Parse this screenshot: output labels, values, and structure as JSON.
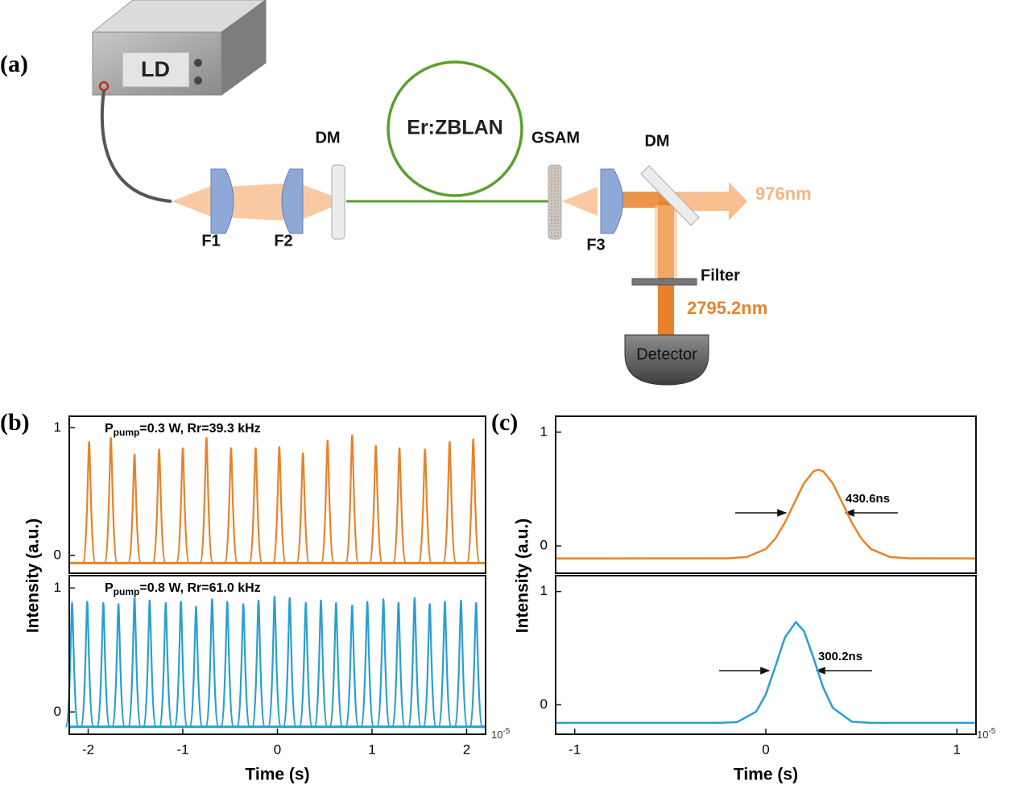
{
  "diagram": {
    "label": "(a)",
    "source": "LD",
    "mirror1": "DM",
    "fiber": "Er:ZBLAN",
    "absorber": "GSAM",
    "mirror2": "DM",
    "pump_wavelength": "976nm",
    "lens1": "F1",
    "lens2": "F2",
    "lens3": "F3",
    "filter": "Filter",
    "laser_wavelength": "2795.2nm",
    "detector": "Detector"
  },
  "chart_data": [
    {
      "type": "pulse",
      "panel_label": "(b)",
      "ylabel": "Intensity (a.u.)",
      "xlabel": "Time (s)",
      "xlim": [
        -2.2,
        2.2
      ],
      "xticks": [
        -2,
        -1,
        0,
        1,
        2
      ],
      "x_multiplier": {
        "base": "10",
        "exponent": "-5"
      },
      "panels": [
        {
          "ylim": [
            -0.14,
            1.09
          ],
          "yticks": [
            0,
            1
          ],
          "color": "#e8822a",
          "baseline": -0.06,
          "annotation": {
            "main": "P",
            "sub": "pump",
            "rest": "=0.3 W, Rr=39.3 kHz"
          },
          "x": [
            -1.99,
            -1.76,
            -1.51,
            -1.25,
            -1.0,
            -0.75,
            -0.49,
            -0.23,
            0.02,
            0.27,
            0.53,
            0.79,
            1.04,
            1.29,
            1.56,
            1.82,
            2.07
          ],
          "values": [
            0.89,
            0.92,
            0.79,
            0.83,
            0.84,
            0.92,
            0.84,
            0.84,
            0.85,
            0.8,
            0.9,
            0.94,
            0.86,
            0.84,
            0.83,
            0.89,
            0.91
          ]
        },
        {
          "ylim": [
            -0.18,
            1.1
          ],
          "yticks": [
            0,
            1
          ],
          "color": "#2a9fd0",
          "baseline": -0.12,
          "annotation": {
            "main": "P",
            "sub": "pump",
            "rest": "=0.8 W, Rr=61.0 kHz"
          },
          "x": [
            -2.17,
            -2.01,
            -1.84,
            -1.68,
            -1.51,
            -1.35,
            -1.18,
            -1.02,
            -0.86,
            -0.69,
            -0.53,
            -0.36,
            -0.2,
            -0.03,
            0.13,
            0.3,
            0.46,
            0.62,
            0.79,
            0.95,
            1.12,
            1.28,
            1.45,
            1.61,
            1.77,
            1.94,
            2.1
          ],
          "values": [
            0.88,
            0.89,
            0.88,
            0.87,
            0.92,
            0.9,
            0.88,
            0.89,
            0.85,
            0.91,
            0.89,
            0.87,
            0.9,
            0.93,
            0.92,
            0.88,
            0.9,
            0.88,
            0.86,
            0.89,
            0.91,
            0.88,
            0.92,
            0.87,
            0.89,
            0.9,
            0.88
          ]
        }
      ]
    },
    {
      "type": "line",
      "panel_label": "(c)",
      "ylabel": "Intensity (a.u.)",
      "xlabel": "Time (s)",
      "xlim": [
        -1.1,
        1.1
      ],
      "xticks": [
        -1,
        0,
        1
      ],
      "x_multiplier": {
        "base": "10",
        "exponent": "-5"
      },
      "panels": [
        {
          "ylim": [
            -0.24,
            1.14
          ],
          "yticks": [
            0,
            1
          ],
          "color": "#e8822a",
          "annotation": "430.6ns",
          "x": [
            -1.1,
            -0.2,
            -0.1,
            0,
            0.05,
            0.1,
            0.15,
            0.2,
            0.25,
            0.275,
            0.3,
            0.35,
            0.4,
            0.45,
            0.5,
            0.55,
            0.65,
            0.75,
            1.1
          ],
          "values": [
            -0.11,
            -0.109,
            -0.098,
            -0.027,
            0.064,
            0.205,
            0.381,
            0.551,
            0.656,
            0.67,
            0.656,
            0.551,
            0.381,
            0.205,
            0.064,
            -0.027,
            -0.098,
            -0.109,
            -0.11
          ]
        },
        {
          "ylim": [
            -0.26,
            1.14
          ],
          "yticks": [
            0,
            1
          ],
          "color": "#2a9fd0",
          "annotation": "300.2ns",
          "x": [
            -1.1,
            -0.25,
            -0.15,
            -0.05,
            0,
            0.05,
            0.1,
            0.157,
            0.2,
            0.25,
            0.3,
            0.35,
            0.45,
            0.55,
            1.1
          ],
          "values": [
            -0.16,
            -0.16,
            -0.153,
            -0.06,
            0.093,
            0.337,
            0.594,
            0.73,
            0.65,
            0.412,
            0.154,
            -0.026,
            -0.149,
            -0.16,
            -0.16
          ]
        }
      ]
    }
  ]
}
